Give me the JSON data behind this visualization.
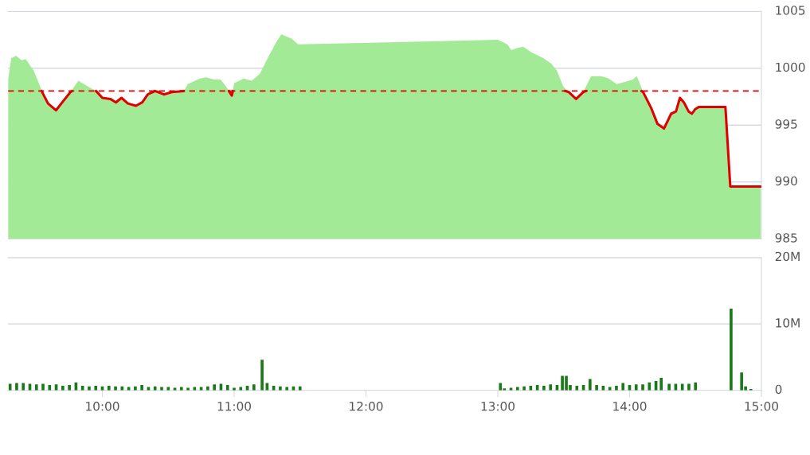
{
  "chart_data": [
    {
      "type": "area",
      "xlim": [
        9.285,
        15.0
      ],
      "ylim": [
        985,
        1005
      ],
      "yticks": [
        985,
        990,
        995,
        1000,
        1005
      ],
      "tick_labels": "y",
      "grid": "y",
      "series": [
        {
          "type": "area",
          "color": "#a3ea96",
          "x": [
            9.285,
            9.309,
            9.345,
            9.388,
            9.418,
            9.479,
            9.539,
            9.588,
            9.648,
            9.709,
            9.758,
            9.818,
            9.891,
            9.952,
            10.0,
            10.061,
            10.103,
            10.145,
            10.194,
            10.255,
            10.303,
            10.345,
            10.424,
            10.467,
            10.527,
            10.618,
            10.648,
            10.739,
            10.788,
            10.848,
            10.897,
            10.939,
            10.982,
            11.0,
            11.073,
            11.133,
            11.194,
            11.255,
            11.315,
            11.358,
            11.394,
            11.436,
            11.485,
            13.0,
            13.073,
            13.103,
            13.152,
            13.194,
            13.255,
            13.345,
            13.406,
            13.448,
            13.497,
            13.539,
            13.594,
            13.648,
            13.709,
            13.782,
            13.842,
            13.903,
            13.964,
            14.024,
            14.055,
            14.103,
            14.164,
            14.212,
            14.261,
            14.315,
            14.352,
            14.382,
            14.412,
            14.448,
            14.473,
            14.497,
            14.527,
            14.727,
            14.764,
            14.994
          ],
          "values": [
            999.0,
            1000.9,
            1001.1,
            1000.7,
            1000.8,
            999.8,
            998.1,
            996.9,
            996.3,
            997.2,
            997.9,
            998.9,
            998.4,
            998.0,
            997.4,
            997.3,
            997.0,
            997.4,
            996.9,
            996.7,
            997.0,
            997.7,
            998.1,
            997.7,
            997.9,
            998.0,
            998.6,
            999.1,
            999.2,
            999.0,
            999.0,
            998.4,
            997.6,
            998.7,
            999.1,
            998.9,
            999.5,
            1000.9,
            1002.2,
            1003.0,
            1002.8,
            1002.6,
            1002.1,
            1002.5,
            1002.1,
            1001.6,
            1001.8,
            1001.9,
            1001.4,
            1000.9,
            1000.4,
            999.8,
            998.4,
            997.9,
            997.3,
            997.9,
            999.3,
            999.3,
            999.1,
            998.6,
            998.8,
            999.0,
            999.3,
            997.9,
            996.5,
            995.1,
            994.7,
            996.0,
            996.2,
            997.4,
            997.0,
            996.2,
            996.0,
            996.4,
            996.6,
            996.6,
            989.6,
            989.6
          ]
        },
        {
          "type": "line",
          "color": "#e00000",
          "x": [
            9.539,
            9.588,
            9.648,
            9.709,
            9.758,
            9.77,
            9.8,
            9.952,
            10.0,
            10.061,
            10.103,
            10.145,
            10.194,
            10.255,
            10.303,
            10.345,
            10.4,
            10.467,
            10.527,
            10.618,
            10.7,
            10.96,
            10.982,
            10.99,
            11.1,
            13.51,
            13.539,
            13.594,
            13.648,
            13.67,
            13.8,
            14.09,
            14.103,
            14.164,
            14.212,
            14.261,
            14.315,
            14.352,
            14.382,
            14.412,
            14.448,
            14.473,
            14.497,
            14.527,
            14.727,
            14.764,
            14.994
          ],
          "values": [
            998.0,
            996.9,
            996.3,
            997.2,
            997.9,
            998.0,
            null,
            998.0,
            997.4,
            997.3,
            997.0,
            997.4,
            996.9,
            996.7,
            997.0,
            997.7,
            998.0,
            997.7,
            997.9,
            998.0,
            null,
            998.0,
            997.6,
            998.0,
            null,
            998.0,
            997.9,
            997.3,
            997.9,
            998.0,
            null,
            998.0,
            997.9,
            996.5,
            995.1,
            994.7,
            996.0,
            996.2,
            997.4,
            997.0,
            996.2,
            996.0,
            996.4,
            996.6,
            996.6,
            989.6,
            989.6
          ]
        }
      ],
      "ref_lines": [
        {
          "axis": "y",
          "value": 998.0,
          "color": "#e00000",
          "line_style": "dashed"
        }
      ]
    },
    {
      "type": "bar",
      "color": "#1a7a1a",
      "xlim": [
        9.285,
        15.0
      ],
      "ylim": [
        0,
        20
      ],
      "grid": "y",
      "xticks": [
        {
          "value": 10,
          "label": "10:00"
        },
        {
          "value": 11,
          "label": "11:00"
        },
        {
          "value": 12,
          "label": "12:00"
        },
        {
          "value": 13,
          "label": "13:00"
        },
        {
          "value": 14,
          "label": "14:00"
        },
        {
          "value": 15,
          "label": "15:00"
        }
      ],
      "yticks": [
        0,
        {
          "value": 10,
          "label": "10M"
        },
        {
          "value": 20,
          "label": "20M"
        }
      ],
      "x": [
        9.3,
        9.35,
        9.4,
        9.45,
        9.5,
        9.55,
        9.6,
        9.65,
        9.7,
        9.75,
        9.8,
        9.85,
        9.9,
        9.95,
        10.0,
        10.05,
        10.1,
        10.15,
        10.2,
        10.25,
        10.3,
        10.35,
        10.4,
        10.45,
        10.5,
        10.55,
        10.6,
        10.65,
        10.7,
        10.75,
        10.8,
        10.85,
        10.9,
        10.95,
        11.0,
        11.05,
        11.1,
        11.15,
        11.212,
        11.25,
        11.3,
        11.35,
        11.4,
        11.45,
        11.5,
        13.02,
        13.05,
        13.1,
        13.15,
        13.2,
        13.25,
        13.3,
        13.35,
        13.4,
        13.45,
        13.49,
        13.52,
        13.55,
        13.6,
        13.65,
        13.7,
        13.75,
        13.8,
        13.85,
        13.9,
        13.95,
        14.0,
        14.05,
        14.1,
        14.15,
        14.2,
        14.24,
        14.3,
        14.35,
        14.4,
        14.45,
        14.5,
        14.77,
        14.85,
        14.88,
        14.92
      ],
      "values": [
        1.0,
        1.1,
        1.1,
        1.0,
        0.9,
        1.0,
        0.8,
        0.9,
        0.7,
        0.8,
        1.2,
        0.7,
        0.6,
        0.7,
        0.6,
        0.7,
        0.6,
        0.6,
        0.5,
        0.6,
        0.8,
        0.5,
        0.6,
        0.5,
        0.5,
        0.4,
        0.5,
        0.4,
        0.5,
        0.5,
        0.6,
        0.9,
        1.0,
        0.8,
        0.4,
        0.5,
        0.7,
        0.9,
        4.6,
        1.1,
        0.7,
        0.6,
        0.5,
        0.6,
        0.6,
        1.1,
        0.3,
        0.4,
        0.5,
        0.6,
        0.7,
        0.8,
        0.7,
        0.9,
        0.8,
        2.2,
        2.2,
        0.8,
        0.7,
        0.8,
        1.7,
        0.8,
        0.7,
        0.5,
        0.7,
        1.1,
        0.8,
        0.9,
        0.9,
        1.2,
        1.4,
        1.9,
        1.0,
        1.0,
        1.0,
        1.0,
        1.2,
        12.3,
        2.7,
        0.6,
        0.2
      ]
    }
  ]
}
